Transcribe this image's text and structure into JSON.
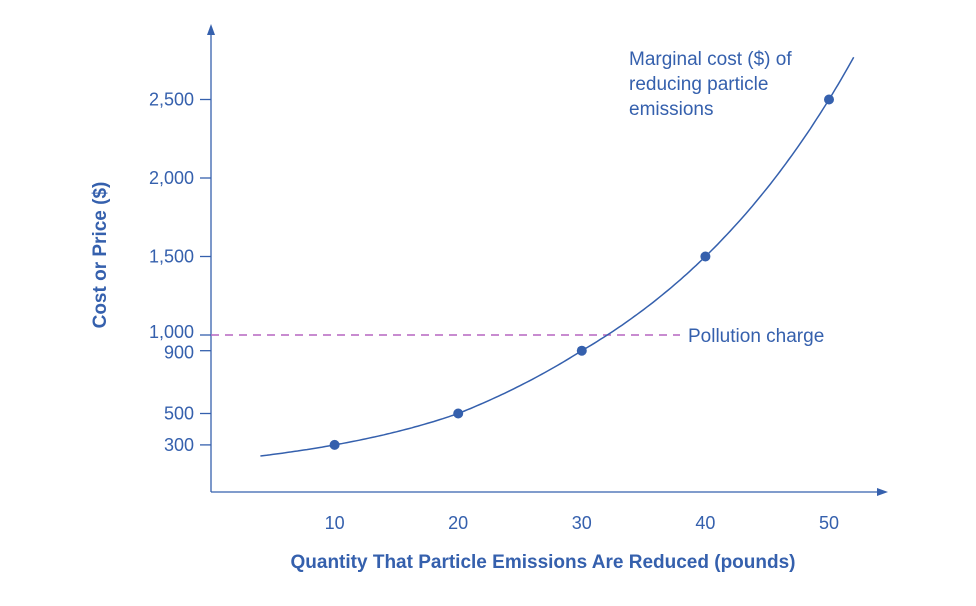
{
  "chart_data": {
    "type": "line",
    "xlabel": "Quantity That Particle Emissions Are Reduced (pounds)",
    "ylabel": "Cost or Price ($)",
    "x_ticks": [
      10,
      20,
      30,
      40,
      50
    ],
    "y_ticks": [
      300,
      500,
      900,
      1000,
      1500,
      2000,
      2500
    ],
    "y_tick_labels": [
      "300",
      "500",
      "900",
      "1,000",
      "1,500",
      "2,000",
      "2,500"
    ],
    "xlim": [
      0,
      54
    ],
    "ylim": [
      0,
      2900
    ],
    "grid": false,
    "series": [
      {
        "name": "Marginal cost ($) of reducing particle emissions",
        "label_lines": [
          "Marginal cost ($) of",
          "reducing particle",
          "emissions"
        ],
        "x": [
          10,
          20,
          30,
          40,
          50
        ],
        "y": [
          300,
          500,
          900,
          1500,
          2500
        ],
        "curve_extent": [
          4,
          52
        ],
        "color": "#3560ad"
      }
    ],
    "reference_lines": [
      {
        "label": "Pollution charge",
        "y": 1000,
        "color": "#b565c0",
        "style": "dashed"
      }
    ],
    "axis_color": "#3560ad"
  }
}
